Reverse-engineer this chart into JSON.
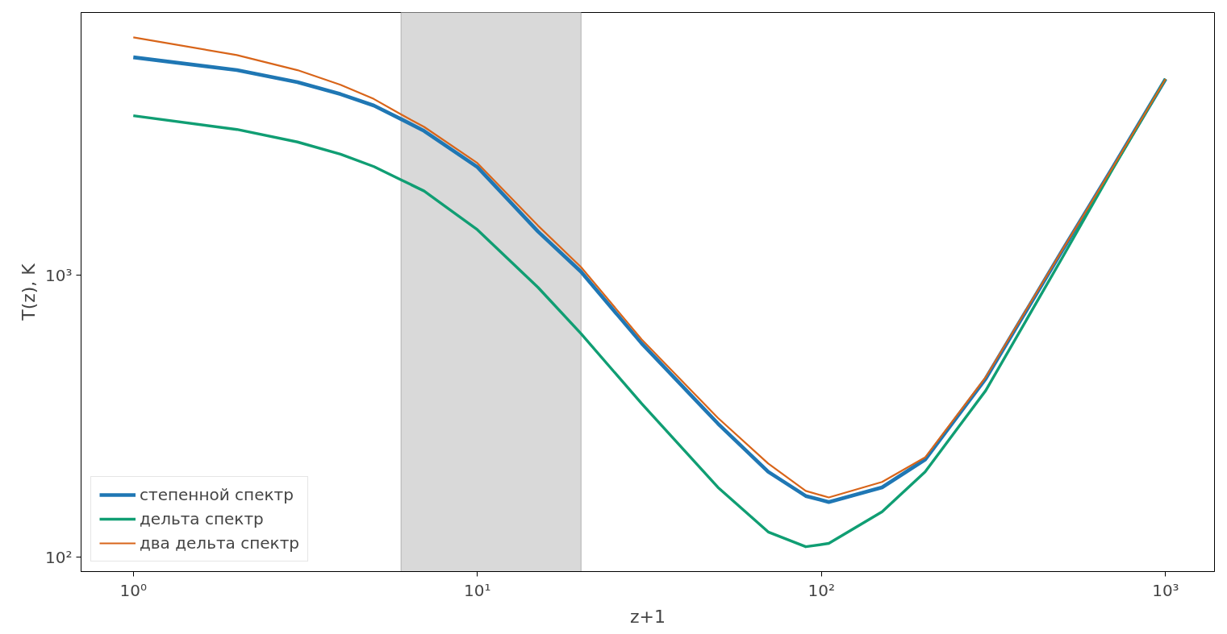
{
  "chart_data": {
    "type": "line",
    "xlabel": "z+1",
    "ylabel": "T(z), K",
    "log": "xy",
    "grid": false,
    "legend": "bottom left",
    "xlim": [
      0.705,
      1387
    ],
    "ylim": [
      89,
      8550
    ],
    "xticks": [
      {
        "value": 1,
        "label": "10⁰"
      },
      {
        "value": 10,
        "label": "10¹"
      },
      {
        "value": 100,
        "label": "10²"
      },
      {
        "value": 1000,
        "label": "10³"
      }
    ],
    "yticks": [
      {
        "value": 100,
        "label": "10²"
      },
      {
        "value": 1000,
        "label": "10³"
      }
    ],
    "bands": [
      {
        "axis": "x",
        "from": 6,
        "to": 20,
        "color": "#d9d9d9"
      }
    ],
    "x": [
      1,
      2,
      3,
      4,
      5,
      6,
      7,
      10,
      15,
      20,
      30,
      50,
      70,
      90,
      105,
      150,
      200,
      300,
      500,
      700,
      1000
    ],
    "series": [
      {
        "name": "степенной спектр",
        "color": "#1f77b4",
        "values": [
          5930,
          5340,
          4840,
          4390,
          4000,
          3580,
          3250,
          2420,
          1430,
          1030,
          574,
          298,
          201,
          165,
          157,
          177,
          222,
          430,
          1220,
          2400,
          4970
        ]
      },
      {
        "name": "дельта спектр",
        "color": "#109e73",
        "values": [
          3680,
          3290,
          2970,
          2690,
          2430,
          2180,
          1990,
          1450,
          906,
          621,
          351,
          177,
          123,
          109,
          112,
          145,
          201,
          390,
          1150,
          2370,
          4970
        ]
      },
      {
        "name": "два дельта спектр",
        "color": "#d8651a",
        "values": [
          6980,
          6040,
          5340,
          4740,
          4220,
          3720,
          3360,
          2500,
          1500,
          1070,
          593,
          312,
          215,
          172,
          163,
          185,
          226,
          435,
          1225,
          2400,
          4970
        ]
      }
    ]
  }
}
